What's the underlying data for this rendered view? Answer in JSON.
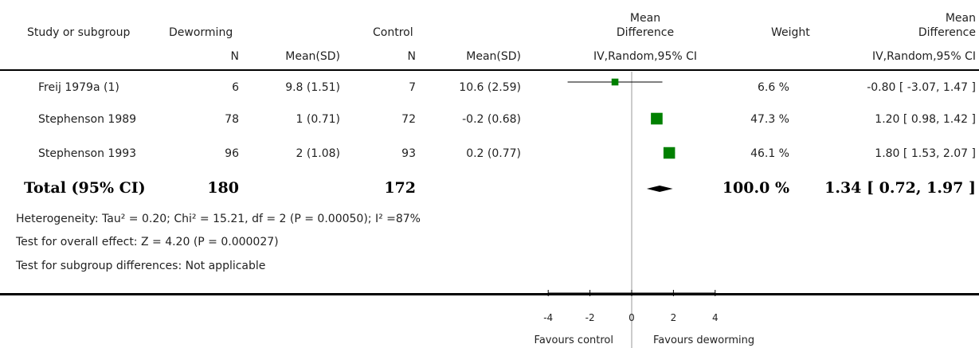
{
  "header": {
    "study": "Study or subgroup",
    "group1": "Deworming",
    "group2": "Control",
    "md_line1": "Mean",
    "md_line2": "Difference",
    "weight": "Weight",
    "md2_line1": "Mean",
    "md2_line2": "Difference",
    "n1": "N",
    "mean1": "Mean(SD)",
    "n2": "N",
    "mean2": "Mean(SD)",
    "method": "IV,Random,95% CI",
    "method2": "IV,Random,95% CI"
  },
  "studies": [
    {
      "name": "Freij 1979a (1)",
      "n1": "6",
      "msd1": "9.8 (1.51)",
      "n2": "7",
      "msd2": "10.6 (2.59)",
      "weight": "6.6 %",
      "ci_text": "-0.80 [ -3.07, 1.47 ]"
    },
    {
      "name": "Stephenson 1989",
      "n1": "78",
      "msd1": "1 (0.71)",
      "n2": "72",
      "msd2": "-0.2 (0.68)",
      "weight": "47.3 %",
      "ci_text": "1.20 [ 0.98, 1.42 ]"
    },
    {
      "name": "Stephenson 1993",
      "n1": "96",
      "msd1": "2 (1.08)",
      "n2": "93",
      "msd2": "0.2 (0.77)",
      "weight": "46.1 %",
      "ci_text": "1.80 [ 1.53, 2.07 ]"
    }
  ],
  "total": {
    "label": "Total (95% CI)",
    "n1": "180",
    "n2": "172",
    "weight": "100.0 %",
    "ci_text": "1.34 [ 0.72, 1.97 ]"
  },
  "notes": {
    "heterogeneity": "Heterogeneity: Tau² = 0.20; Chi² = 15.21, df = 2 (P = 0.00050); I² =87%",
    "overall": "Test for overall effect: Z = 4.20 (P = 0.000027)",
    "subgroup": "Test for subgroup differences: Not applicable"
  },
  "axis": {
    "favours_left": "Favours control",
    "favours_right": "Favours deworming"
  },
  "colors": {
    "study_marker": "#008000",
    "summary": "#000000"
  },
  "chart_data": {
    "type": "forest",
    "x_range": [
      -4,
      4
    ],
    "ticks": [
      -4,
      -2,
      0,
      2,
      4
    ],
    "studies": [
      {
        "name": "Freij 1979a (1)",
        "estimate": -0.8,
        "ci": [
          -3.07,
          1.47
        ],
        "weight": 6.6
      },
      {
        "name": "Stephenson 1989",
        "estimate": 1.2,
        "ci": [
          0.98,
          1.42
        ],
        "weight": 47.3
      },
      {
        "name": "Stephenson 1993",
        "estimate": 1.8,
        "ci": [
          1.53,
          2.07
        ],
        "weight": 46.1
      }
    ],
    "summary": {
      "estimate": 1.34,
      "ci": [
        0.72,
        1.97
      ]
    }
  }
}
